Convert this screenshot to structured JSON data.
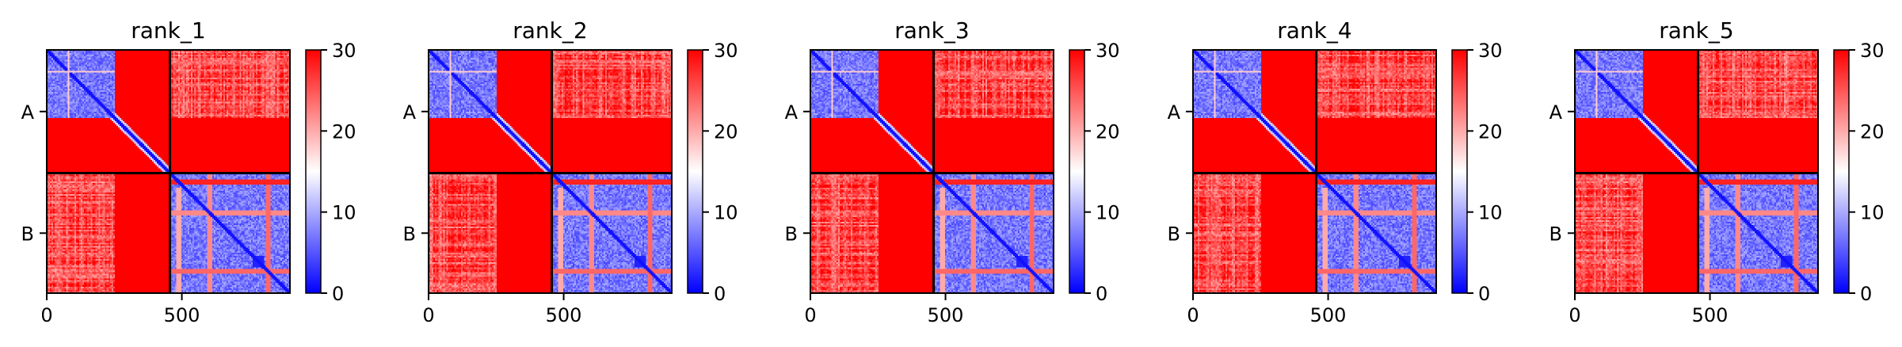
{
  "chart_data": [
    {
      "type": "heatmap",
      "title": "rank_1",
      "matrix_size": 900,
      "chain_boundary": 456,
      "xticks": [
        0,
        500
      ],
      "xtick_labels": [
        "0",
        "500"
      ],
      "ytick_labels": [
        "A",
        "B"
      ],
      "colorbar": {
        "min": 0,
        "max": 30,
        "ticks": [
          0,
          10,
          20,
          30
        ],
        "tick_labels": [
          "0",
          "10",
          "20",
          "30"
        ]
      },
      "colormap": [
        "#0000ff",
        "#ffffff",
        "#ff0000"
      ]
    },
    {
      "type": "heatmap",
      "title": "rank_2",
      "matrix_size": 900,
      "chain_boundary": 456,
      "xticks": [
        0,
        500
      ],
      "xtick_labels": [
        "0",
        "500"
      ],
      "ytick_labels": [
        "A",
        "B"
      ],
      "colorbar": {
        "min": 0,
        "max": 30,
        "ticks": [
          0,
          10,
          20,
          30
        ],
        "tick_labels": [
          "0",
          "10",
          "20",
          "30"
        ]
      },
      "colormap": [
        "#0000ff",
        "#ffffff",
        "#ff0000"
      ]
    },
    {
      "type": "heatmap",
      "title": "rank_3",
      "matrix_size": 900,
      "chain_boundary": 456,
      "xticks": [
        0,
        500
      ],
      "xtick_labels": [
        "0",
        "500"
      ],
      "ytick_labels": [
        "A",
        "B"
      ],
      "colorbar": {
        "min": 0,
        "max": 30,
        "ticks": [
          0,
          10,
          20,
          30
        ],
        "tick_labels": [
          "0",
          "10",
          "20",
          "30"
        ]
      },
      "colormap": [
        "#0000ff",
        "#ffffff",
        "#ff0000"
      ]
    },
    {
      "type": "heatmap",
      "title": "rank_4",
      "matrix_size": 900,
      "chain_boundary": 456,
      "xticks": [
        0,
        500
      ],
      "xtick_labels": [
        "0",
        "500"
      ],
      "ytick_labels": [
        "A",
        "B"
      ],
      "colorbar": {
        "min": 0,
        "max": 30,
        "ticks": [
          0,
          10,
          20,
          30
        ],
        "tick_labels": [
          "0",
          "10",
          "20",
          "30"
        ]
      },
      "colormap": [
        "#0000ff",
        "#ffffff",
        "#ff0000"
      ]
    },
    {
      "type": "heatmap",
      "title": "rank_5",
      "matrix_size": 900,
      "chain_boundary": 456,
      "xticks": [
        0,
        500
      ],
      "xtick_labels": [
        "0",
        "500"
      ],
      "ytick_labels": [
        "A",
        "B"
      ],
      "colorbar": {
        "min": 0,
        "max": 30,
        "ticks": [
          0,
          10,
          20,
          30
        ],
        "tick_labels": [
          "0",
          "10",
          "20",
          "30"
        ]
      },
      "colormap": [
        "#0000ff",
        "#ffffff",
        "#ff0000"
      ]
    }
  ]
}
